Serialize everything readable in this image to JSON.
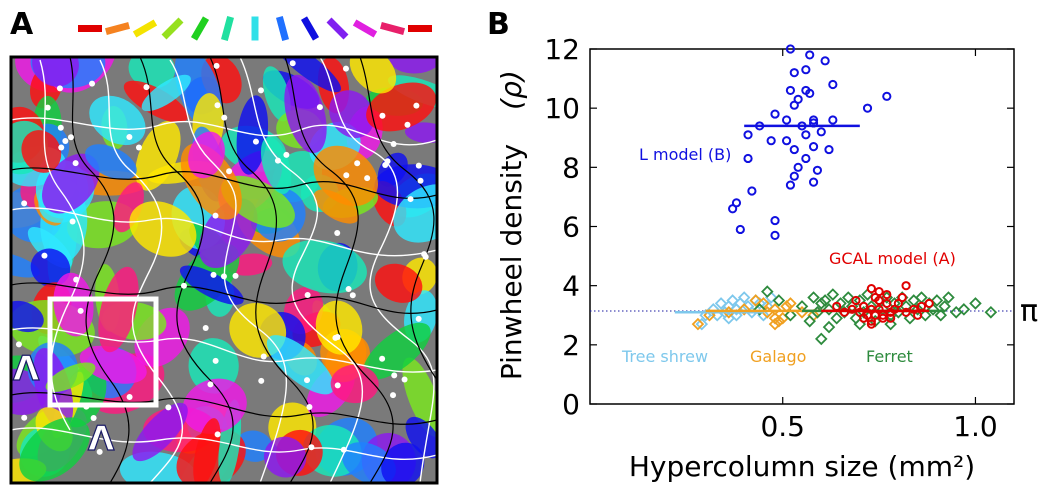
{
  "panels": {
    "a_label": "A",
    "b_label": "B"
  },
  "map": {
    "orientation_key_colors": [
      "#e00000",
      "#f58220",
      "#f4e300",
      "#96e01e",
      "#20d020",
      "#20e0a0",
      "#30e0e8",
      "#2070ff",
      "#1010e0",
      "#8020f0",
      "#e020e0",
      "#e8206a",
      "#e00000"
    ],
    "arrow_glyph": "Λ",
    "pinwheel_dot_color": "#ffffff"
  },
  "chart_data": {
    "type": "scatter",
    "xlabel": "Hypercolumn size (mm²)",
    "ylabel": "Pinwheel density",
    "ylabel_symbol": "(ρ)",
    "xlim": [
      0.0,
      1.1
    ],
    "ylim": [
      0,
      12
    ],
    "xticks": [
      "0.5",
      "1.0"
    ],
    "yticks": [
      "0",
      "2",
      "4",
      "6",
      "8",
      "10",
      "12"
    ],
    "pi_label": "π",
    "pi_value": 3.1416,
    "series": [
      {
        "name": "L model (B)",
        "color": "#1010e0",
        "marker": "circle",
        "mean": 9.4,
        "mean_x_range": [
          0.4,
          0.7
        ],
        "points": [
          [
            0.52,
            12.0
          ],
          [
            0.57,
            11.8
          ],
          [
            0.61,
            11.6
          ],
          [
            0.56,
            11.3
          ],
          [
            0.53,
            11.2
          ],
          [
            0.63,
            10.8
          ],
          [
            0.56,
            10.6
          ],
          [
            0.52,
            10.6
          ],
          [
            0.57,
            10.5
          ],
          [
            0.54,
            10.3
          ],
          [
            0.53,
            10.1
          ],
          [
            0.77,
            10.4
          ],
          [
            0.72,
            10.0
          ],
          [
            0.48,
            9.8
          ],
          [
            0.51,
            9.6
          ],
          [
            0.58,
            9.6
          ],
          [
            0.44,
            9.4
          ],
          [
            0.55,
            9.4
          ],
          [
            0.58,
            9.5
          ],
          [
            0.63,
            9.6
          ],
          [
            0.41,
            9.1
          ],
          [
            0.47,
            8.9
          ],
          [
            0.56,
            9.1
          ],
          [
            0.6,
            9.2
          ],
          [
            0.51,
            8.9
          ],
          [
            0.58,
            8.7
          ],
          [
            0.62,
            8.6
          ],
          [
            0.53,
            8.6
          ],
          [
            0.56,
            8.3
          ],
          [
            0.41,
            8.3
          ],
          [
            0.54,
            8.0
          ],
          [
            0.59,
            7.9
          ],
          [
            0.53,
            7.7
          ],
          [
            0.58,
            7.5
          ],
          [
            0.52,
            7.4
          ],
          [
            0.42,
            7.2
          ],
          [
            0.38,
            6.8
          ],
          [
            0.37,
            6.6
          ],
          [
            0.48,
            6.2
          ],
          [
            0.39,
            5.9
          ],
          [
            0.48,
            5.7
          ]
        ]
      },
      {
        "name": "GCAL model (A)",
        "color": "#e00000",
        "marker": "circle",
        "mean": 3.15,
        "mean_x_range": [
          0.6,
          0.88
        ],
        "points": [
          [
            0.73,
            3.9
          ],
          [
            0.74,
            3.6
          ],
          [
            0.75,
            3.5
          ],
          [
            0.77,
            3.4
          ],
          [
            0.71,
            3.3
          ],
          [
            0.73,
            3.2
          ],
          [
            0.75,
            3.2
          ],
          [
            0.78,
            3.1
          ],
          [
            0.72,
            3.0
          ],
          [
            0.74,
            3.0
          ],
          [
            0.76,
            3.0
          ],
          [
            0.79,
            3.2
          ],
          [
            0.7,
            3.1
          ],
          [
            0.71,
            2.9
          ],
          [
            0.73,
            2.8
          ],
          [
            0.76,
            2.9
          ],
          [
            0.78,
            2.9
          ],
          [
            0.68,
            3.2
          ],
          [
            0.8,
            3.4
          ],
          [
            0.82,
            3.1
          ],
          [
            0.82,
            4.0
          ],
          [
            0.81,
            3.6
          ],
          [
            0.84,
            3.2
          ],
          [
            0.86,
            3.3
          ],
          [
            0.88,
            3.4
          ],
          [
            0.75,
            3.8
          ],
          [
            0.77,
            3.7
          ],
          [
            0.69,
            3.5
          ],
          [
            0.64,
            3.3
          ],
          [
            0.66,
            3.1
          ],
          [
            0.85,
            3.0
          ],
          [
            0.73,
            2.7
          ]
        ]
      },
      {
        "name": "Tree shrew",
        "color": "#7ec8ec",
        "marker": "diamond",
        "mean": 3.1,
        "mean_x_range": [
          0.22,
          0.45
        ],
        "points": [
          [
            0.29,
            2.7
          ],
          [
            0.3,
            3.0
          ],
          [
            0.32,
            3.2
          ],
          [
            0.34,
            3.4
          ],
          [
            0.35,
            3.1
          ],
          [
            0.36,
            3.3
          ],
          [
            0.37,
            3.5
          ],
          [
            0.38,
            3.2
          ],
          [
            0.38,
            3.0
          ],
          [
            0.39,
            3.4
          ],
          [
            0.4,
            3.6
          ],
          [
            0.41,
            3.3
          ],
          [
            0.42,
            3.1
          ],
          [
            0.43,
            3.5
          ],
          [
            0.44,
            3.2
          ],
          [
            0.44,
            3.4
          ],
          [
            0.45,
            3.0
          ],
          [
            0.46,
            3.3
          ],
          [
            0.47,
            3.6
          ],
          [
            0.36,
            2.9
          ],
          [
            0.33,
            3.0
          ]
        ]
      },
      {
        "name": "Galago",
        "color": "#f0a020",
        "marker": "diamond",
        "mean": 3.15,
        "mean_x_range": [
          0.3,
          0.6
        ],
        "points": [
          [
            0.28,
            2.7
          ],
          [
            0.31,
            3.0
          ],
          [
            0.36,
            3.1
          ],
          [
            0.4,
            3.2
          ],
          [
            0.43,
            3.5
          ],
          [
            0.45,
            3.4
          ],
          [
            0.46,
            3.1
          ],
          [
            0.48,
            3.2
          ],
          [
            0.48,
            2.9
          ],
          [
            0.5,
            2.9
          ],
          [
            0.51,
            3.3
          ],
          [
            0.52,
            3.4
          ],
          [
            0.55,
            3.1
          ],
          [
            0.58,
            3.0
          ],
          [
            0.48,
            2.7
          ],
          [
            0.49,
            2.8
          ]
        ]
      },
      {
        "name": "Ferret",
        "color": "#2e8b3e",
        "marker": "diamond",
        "mean": 3.15,
        "mean_x_range": [
          0.55,
          0.92
        ],
        "points": [
          [
            0.44,
            3.2
          ],
          [
            0.46,
            3.8
          ],
          [
            0.49,
            3.5
          ],
          [
            0.52,
            3.0
          ],
          [
            0.55,
            3.3
          ],
          [
            0.57,
            2.8
          ],
          [
            0.58,
            3.6
          ],
          [
            0.59,
            3.1
          ],
          [
            0.6,
            3.4
          ],
          [
            0.6,
            2.2
          ],
          [
            0.61,
            3.5
          ],
          [
            0.62,
            3.2
          ],
          [
            0.63,
            3.7
          ],
          [
            0.64,
            2.9
          ],
          [
            0.65,
            3.4
          ],
          [
            0.66,
            3.1
          ],
          [
            0.67,
            3.6
          ],
          [
            0.68,
            3.3
          ],
          [
            0.69,
            2.9
          ],
          [
            0.7,
            3.5
          ],
          [
            0.71,
            3.1
          ],
          [
            0.72,
            3.7
          ],
          [
            0.73,
            3.3
          ],
          [
            0.74,
            2.8
          ],
          [
            0.75,
            3.5
          ],
          [
            0.76,
            3.2
          ],
          [
            0.77,
            3.6
          ],
          [
            0.78,
            3.0
          ],
          [
            0.79,
            3.4
          ],
          [
            0.8,
            3.1
          ],
          [
            0.81,
            3.6
          ],
          [
            0.82,
            3.3
          ],
          [
            0.83,
            2.9
          ],
          [
            0.84,
            3.5
          ],
          [
            0.85,
            3.2
          ],
          [
            0.86,
            3.6
          ],
          [
            0.87,
            3.0
          ],
          [
            0.88,
            3.4
          ],
          [
            0.89,
            3.2
          ],
          [
            0.9,
            3.5
          ],
          [
            0.91,
            3.0
          ],
          [
            0.92,
            3.3
          ],
          [
            0.93,
            3.6
          ],
          [
            0.95,
            3.1
          ],
          [
            0.97,
            3.2
          ],
          [
            1.0,
            3.4
          ],
          [
            1.04,
            3.1
          ],
          [
            0.62,
            2.6
          ],
          [
            0.7,
            2.7
          ],
          [
            0.78,
            2.7
          ]
        ]
      }
    ]
  }
}
